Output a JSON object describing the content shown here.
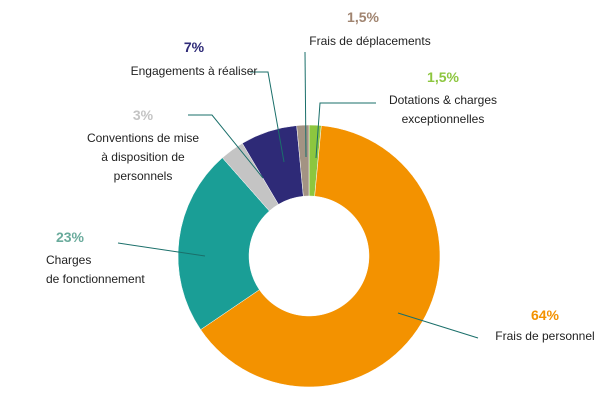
{
  "chart_data": {
    "type": "donut",
    "categories": [
      "Dotations & charges\nexceptionnelles",
      "Frais de personnel",
      "Charges\nde fonctionnement",
      "Conventions de mise\nà disposition de\npersonnels",
      "Engagements à réaliser",
      "Frais de déplacements"
    ],
    "values": [
      1.5,
      64,
      23,
      3,
      7,
      1.5
    ],
    "value_labels": [
      "1,5%",
      "64%",
      "23%",
      "3%",
      "7%",
      "1,5%"
    ],
    "colors": [
      "#8dc63f",
      "#f39200",
      "#1a9e96",
      "#c4c4c4",
      "#2e2a77",
      "#a39383"
    ],
    "label_colors": [
      "#8dc63f",
      "#f39200",
      "#6aab9c",
      "#c4c4c4",
      "#2e2a77",
      "#a08470"
    ]
  }
}
